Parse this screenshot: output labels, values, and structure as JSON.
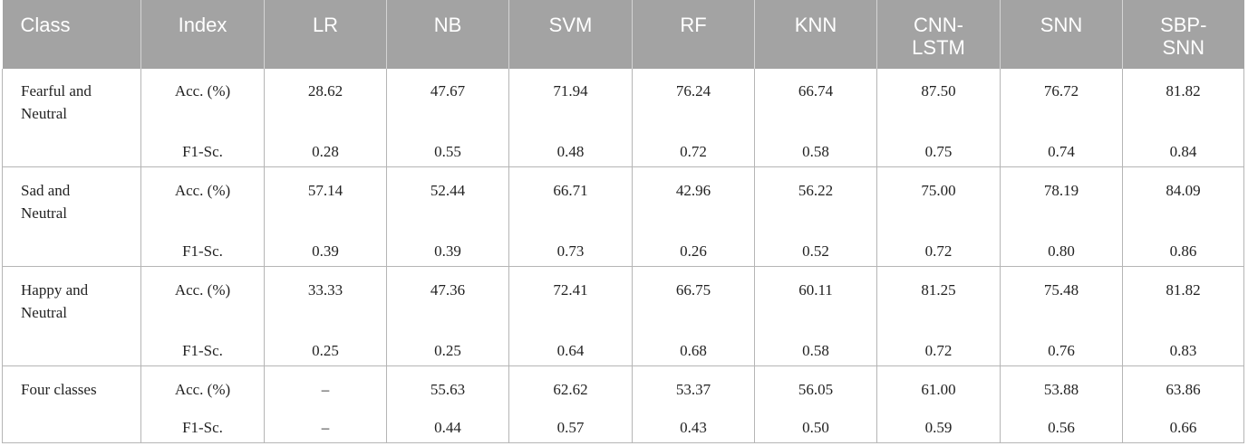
{
  "table": {
    "headers": [
      "Class",
      "Index",
      "LR",
      "NB",
      "SVM",
      "RF",
      "KNN",
      "CNN-\nLSTM",
      "SNN",
      "SBP-\nSNN"
    ],
    "groups": [
      {
        "class": "Fearful and\nNeutral",
        "rows": [
          {
            "index": "Acc. (%)",
            "values": [
              "28.62",
              "47.67",
              "71.94",
              "76.24",
              "66.74",
              "87.50",
              "76.72",
              "81.82"
            ]
          },
          {
            "index": "F1-Sc.",
            "values": [
              "0.28",
              "0.55",
              "0.48",
              "0.72",
              "0.58",
              "0.75",
              "0.74",
              "0.84"
            ]
          }
        ]
      },
      {
        "class": "Sad and\nNeutral",
        "rows": [
          {
            "index": "Acc. (%)",
            "values": [
              "57.14",
              "52.44",
              "66.71",
              "42.96",
              "56.22",
              "75.00",
              "78.19",
              "84.09"
            ]
          },
          {
            "index": "F1-Sc.",
            "values": [
              "0.39",
              "0.39",
              "0.73",
              "0.26",
              "0.52",
              "0.72",
              "0.80",
              "0.86"
            ]
          }
        ]
      },
      {
        "class": "Happy and\nNeutral",
        "rows": [
          {
            "index": "Acc. (%)",
            "values": [
              "33.33",
              "47.36",
              "72.41",
              "66.75",
              "60.11",
              "81.25",
              "75.48",
              "81.82"
            ]
          },
          {
            "index": "F1-Sc.",
            "values": [
              "0.25",
              "0.25",
              "0.64",
              "0.68",
              "0.58",
              "0.72",
              "0.76",
              "0.83"
            ]
          }
        ]
      },
      {
        "class": "Four classes",
        "rows": [
          {
            "index": "Acc. (%)",
            "values": [
              "–",
              "55.63",
              "62.62",
              "53.37",
              "56.05",
              "61.00",
              "53.88",
              "63.86"
            ]
          },
          {
            "index": "F1-Sc.",
            "values": [
              "–",
              "0.44",
              "0.57",
              "0.43",
              "0.50",
              "0.59",
              "0.56",
              "0.66"
            ]
          }
        ]
      }
    ]
  }
}
